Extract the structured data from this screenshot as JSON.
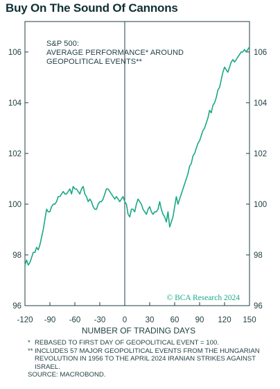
{
  "title": "Buy On The Sound Of Cannons",
  "chart_data": {
    "type": "line",
    "annotation": [
      "S&P 500:",
      "AVERAGE PERFORMANCE* AROUND",
      "GEOPOLITICAL EVENTS**"
    ],
    "xlabel": "NUMBER OF TRADING DAYS",
    "xlim": [
      -120,
      150
    ],
    "ylim": [
      96,
      107.2
    ],
    "xticks": [
      -120,
      -90,
      -60,
      -30,
      0,
      30,
      60,
      90,
      120,
      150
    ],
    "yticks": [
      96,
      98,
      100,
      102,
      104,
      106
    ],
    "vline_at": 0,
    "line_color": "#19a884",
    "series": [
      {
        "x": [
          -120,
          -118,
          -116,
          -114,
          -112,
          -110,
          -108,
          -106,
          -104,
          -102,
          -100,
          -98,
          -96,
          -94,
          -92,
          -90,
          -88,
          -86,
          -84,
          -82,
          -80,
          -78,
          -76,
          -74,
          -72,
          -70,
          -68,
          -66,
          -64,
          -62,
          -60,
          -58,
          -56,
          -54,
          -52,
          -50,
          -48,
          -46,
          -44,
          -42,
          -40,
          -38,
          -36,
          -34,
          -32,
          -30,
          -28,
          -26,
          -24,
          -22,
          -20,
          -18,
          -16,
          -14,
          -12,
          -10,
          -8,
          -6,
          -4,
          -2,
          0,
          2,
          4,
          6,
          8,
          10,
          12,
          14,
          16,
          18,
          20,
          22,
          24,
          26,
          28,
          30,
          32,
          34,
          36,
          38,
          40,
          42,
          44,
          46,
          48,
          50,
          52,
          54,
          56,
          58,
          60,
          62,
          64,
          66,
          68,
          70,
          72,
          74,
          76,
          78,
          80,
          82,
          84,
          86,
          88,
          90,
          92,
          94,
          96,
          98,
          100,
          102,
          104,
          106,
          108,
          110,
          112,
          114,
          116,
          118,
          120,
          122,
          124,
          126,
          128,
          130,
          132,
          134,
          136,
          138,
          140,
          142,
          144,
          146,
          148,
          150
        ],
        "values": [
          97.6,
          97.8,
          97.6,
          97.7,
          97.9,
          98.1,
          98.1,
          98.3,
          98.2,
          98.4,
          98.7,
          99.0,
          99.4,
          99.8,
          99.7,
          99.7,
          99.9,
          100.0,
          100.0,
          100.1,
          100.3,
          100.3,
          100.4,
          100.5,
          100.4,
          100.4,
          100.5,
          100.6,
          100.4,
          100.7,
          100.6,
          100.6,
          100.5,
          100.4,
          100.6,
          100.7,
          100.4,
          100.3,
          100.1,
          100.2,
          100.1,
          99.9,
          99.8,
          99.8,
          100.0,
          100.1,
          100.1,
          100.2,
          100.4,
          100.6,
          100.6,
          100.5,
          100.4,
          100.3,
          100.2,
          100.3,
          100.2,
          100.1,
          100.2,
          100.3,
          100.1,
          100.0,
          99.6,
          99.5,
          99.8,
          99.8,
          99.7,
          100.0,
          100.2,
          100.1,
          100.0,
          99.8,
          99.7,
          99.6,
          99.8,
          99.9,
          99.7,
          99.6,
          99.7,
          99.7,
          99.8,
          100.1,
          99.8,
          99.6,
          99.5,
          99.3,
          99.7,
          99.1,
          99.3,
          99.5,
          99.9,
          100.3,
          100.0,
          100.2,
          100.4,
          100.6,
          100.8,
          101.0,
          101.2,
          101.5,
          101.6,
          101.9,
          102.0,
          102.2,
          102.4,
          102.5,
          102.7,
          102.9,
          103.0,
          103.2,
          103.4,
          103.7,
          103.6,
          103.9,
          104.0,
          104.2,
          104.5,
          104.6,
          104.9,
          105.2,
          105.4,
          105.3,
          105.2,
          105.4,
          105.6,
          105.7,
          105.6,
          105.7,
          105.8,
          105.9,
          106.0,
          106.0,
          106.1,
          106.0,
          106.1,
          106.2
        ]
      }
    ],
    "watermark": "© BCA Research 2024"
  },
  "notes": [
    {
      "mark": "*",
      "text": "REBASED TO FIRST DAY OF GEOPOLITICAL EVENT = 100."
    },
    {
      "mark": "**",
      "text": "INCLUDES 57 MAJOR GEOPOLITICAL EVENTS FROM THE HUNGARIAN REVOLUTION IN 1956 TO THE APRIL 2024 IRANIAN STRIKES AGAINST ISRAEL."
    }
  ],
  "source": "SOURCE: MACROBOND."
}
